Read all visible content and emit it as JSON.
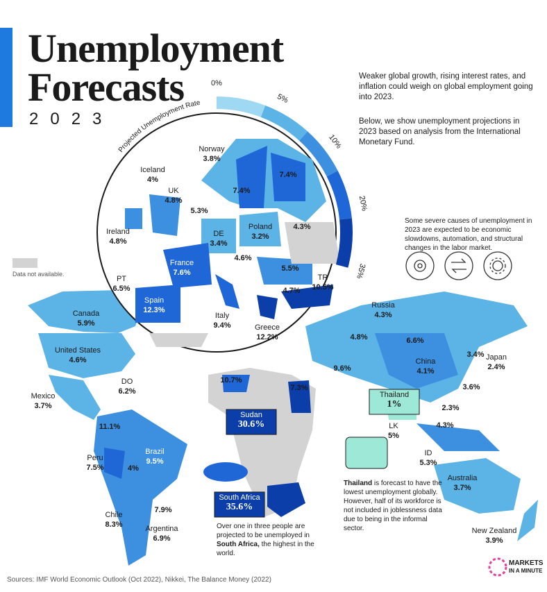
{
  "header": {
    "title_line1": "Unemployment",
    "title_line2": "Forecasts",
    "year": "2023"
  },
  "intro": [
    "Weaker global growth, rising interest rates, and inflation could weigh on global employment going into 2023.",
    "Below, we show unemployment projections in 2023 based on analysis from the International Monetary Fund."
  ],
  "legend": {
    "title": "Projected Unemployment Rate",
    "ticks": [
      "0%",
      "5%",
      "10%",
      "20%",
      "35%"
    ],
    "no_data": "Data not available."
  },
  "causes": "Some severe causes of unemployment in 2023 are expected to be economic slowdowns, automation, and structural changes in the labor market.",
  "countries": [
    {
      "name": "Norway",
      "value": "3.8%"
    },
    {
      "value": "7.4%"
    },
    {
      "value": "7.4%"
    },
    {
      "name": "Iceland",
      "value": "4%"
    },
    {
      "name": "UK",
      "value": "4.8%"
    },
    {
      "value": "5.3%"
    },
    {
      "name": "Ireland",
      "value": "4.8%"
    },
    {
      "name": "DE",
      "value": "3.4%"
    },
    {
      "name": "Poland",
      "value": "3.2%"
    },
    {
      "value": "4.3%"
    },
    {
      "value": "4.6%"
    },
    {
      "name": "France",
      "value": "7.6%"
    },
    {
      "value": "5.5%"
    },
    {
      "name": "PT",
      "value": "6.5%"
    },
    {
      "name": "TR",
      "value": "10.5%"
    },
    {
      "value": "4.7%"
    },
    {
      "name": "Spain",
      "value": "12.3%"
    },
    {
      "name": "Italy",
      "value": "9.4%"
    },
    {
      "name": "Greece",
      "value": "12.2%"
    },
    {
      "name": "Canada",
      "value": "5.9%"
    },
    {
      "name": "United States",
      "value": "4.6%"
    },
    {
      "name": "Russia",
      "value": "4.3%"
    },
    {
      "value": "4.8%"
    },
    {
      "value": "6.6%"
    },
    {
      "value": "3.4%"
    },
    {
      "name": "Japan",
      "value": "2.4%"
    },
    {
      "name": "China",
      "value": "4.1%"
    },
    {
      "value": "9.6%"
    },
    {
      "value": "10.7%"
    },
    {
      "value": "7.3%"
    },
    {
      "name": "DO",
      "value": "6.2%"
    },
    {
      "name": "Mexico",
      "value": "3.7%"
    },
    {
      "value": "3.6%"
    },
    {
      "name": "Thailand",
      "value": "1%"
    },
    {
      "value": "2.3%"
    },
    {
      "name": "Sudan",
      "value": "30.6%"
    },
    {
      "value": "11.1%"
    },
    {
      "name": "LK",
      "value": "5%"
    },
    {
      "value": "4.3%"
    },
    {
      "name": "Brazil",
      "value": "9.5%"
    },
    {
      "name": "ID",
      "value": "5.3%"
    },
    {
      "name": "Peru",
      "value": "7.5%"
    },
    {
      "value": "4%"
    },
    {
      "name": "Australia",
      "value": "3.7%"
    },
    {
      "value": "7.9%"
    },
    {
      "name": "Chile",
      "value": "8.3%"
    },
    {
      "name": "Argentina",
      "value": "6.9%"
    },
    {
      "name": "New Zealand",
      "value": "3.9%"
    },
    {
      "name": "South Africa",
      "value": "35.6%"
    }
  ],
  "thailand_note": {
    "bold": "Thailand",
    "text": " is forecast to have the lowest unemployment globally. However, half of its workforce is not included in joblessness data due to being in the informal sector."
  },
  "south_africa_note": {
    "text1": "Over one in three people are projected to be unemployed in ",
    "bold": "South Africa,",
    "text2": " the highest in the world."
  },
  "source": "Sources: IMF World Economic Outlook (Oct 2022), Nikkei, The Balance Money (2022)",
  "brand": {
    "line1": "MARKETS",
    "line2": "IN A MINUTE"
  }
}
